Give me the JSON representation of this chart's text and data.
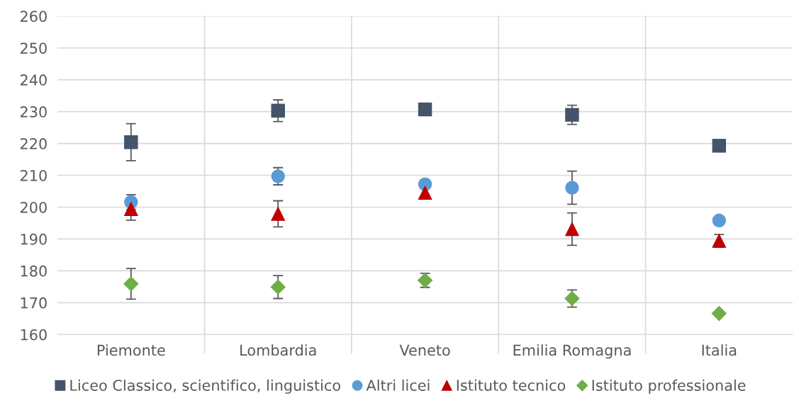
{
  "chart_data": {
    "type": "scatter",
    "categories": [
      "Piemonte",
      "Lombardia",
      "Veneto",
      "Emilia Romagna",
      "Italia"
    ],
    "series": [
      {
        "name": "Liceo Classico, scientifico, linguistico",
        "color": "#44546a",
        "marker": "square",
        "values": [
          220.4,
          230.3,
          230.7,
          229,
          219.3
        ],
        "errors": [
          5.8,
          3.4,
          null,
          3,
          null
        ]
      },
      {
        "name": "Altri licei",
        "color": "#5b9bd5",
        "marker": "circle",
        "values": [
          201.6,
          209.7,
          207.2,
          206.1,
          195.8
        ],
        "errors": [
          2.3,
          2.7,
          null,
          5.2,
          null
        ]
      },
      {
        "name": "Istituto tecnico",
        "color": "#c00000",
        "marker": "triangle",
        "values": [
          199.4,
          197.9,
          204.5,
          193.1,
          189.4
        ],
        "errors": [
          3.5,
          4.1,
          null,
          5.1,
          2
        ]
      },
      {
        "name": "Istituto professionale",
        "color": "#70ad47",
        "marker": "diamond",
        "values": [
          175.9,
          174.9,
          177,
          171.3,
          166.6
        ],
        "errors": [
          4.8,
          3.6,
          2.2,
          2.7,
          null
        ]
      }
    ],
    "ylim": [
      160,
      260
    ],
    "yticks": [
      160,
      170,
      180,
      190,
      200,
      210,
      220,
      230,
      240,
      250,
      260
    ],
    "grid": true,
    "legend": "bottom"
  }
}
